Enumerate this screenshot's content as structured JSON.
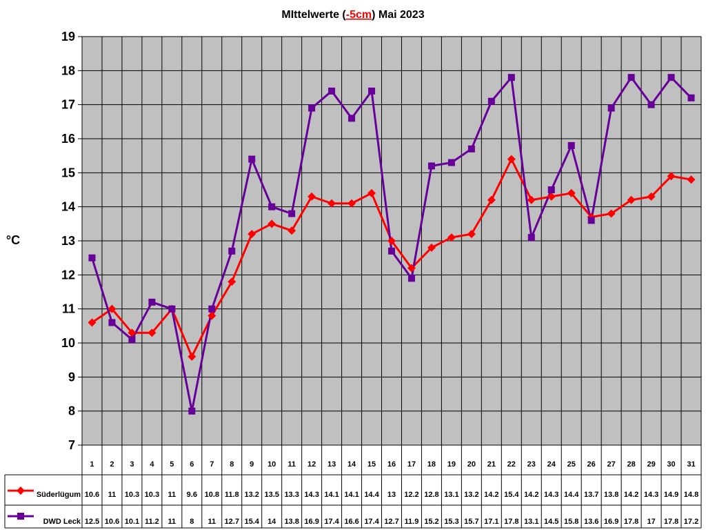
{
  "chart_data": {
    "type": "line",
    "title_prefix": "MIttelwerte (",
    "title_highlight": "-5cm",
    "title_suffix": ") Mai 2023",
    "ylabel": "°C",
    "ylim": [
      7,
      19
    ],
    "yticks": [
      7,
      8,
      9,
      10,
      11,
      12,
      13,
      14,
      15,
      16,
      17,
      18,
      19
    ],
    "grid": true,
    "legend_position": "bottom-left table",
    "categories": [
      "1",
      "2",
      "3",
      "4",
      "5",
      "6",
      "7",
      "8",
      "9",
      "10",
      "11",
      "12",
      "13",
      "14",
      "15",
      "16",
      "17",
      "18",
      "19",
      "20",
      "21",
      "22",
      "23",
      "24",
      "25",
      "26",
      "27",
      "28",
      "29",
      "30",
      "31"
    ],
    "series": [
      {
        "name": "Süderlügum",
        "color": "#ff0000",
        "marker": "diamond",
        "values": [
          10.6,
          11,
          10.3,
          10.3,
          11,
          9.6,
          10.8,
          11.8,
          13.2,
          13.5,
          13.3,
          14.3,
          14.1,
          14.1,
          14.4,
          13,
          12.2,
          12.8,
          13.1,
          13.2,
          14.2,
          15.4,
          14.2,
          14.3,
          14.4,
          13.7,
          13.8,
          14.2,
          14.3,
          14.9,
          14.8
        ],
        "labels": [
          "10.6",
          "11",
          "10.3",
          "10.3",
          "11",
          "9.6",
          "10.8",
          "11.8",
          "13.2",
          "13.5",
          "13.3",
          "14.3",
          "14.1",
          "14.1",
          "14.4",
          "13",
          "12.2",
          "12.8",
          "13.1",
          "13.2",
          "14.2",
          "15.4",
          "14.2",
          "14.3",
          "14.4",
          "13.7",
          "13.8",
          "14.2",
          "14.3",
          "14.9",
          "14.8"
        ]
      },
      {
        "name": "DWD Leck",
        "color": "#660099",
        "marker": "square",
        "values": [
          12.5,
          10.6,
          10.1,
          11.2,
          11,
          8,
          11,
          12.7,
          15.4,
          14,
          13.8,
          16.9,
          17.4,
          16.6,
          17.4,
          12.7,
          11.9,
          15.2,
          15.3,
          15.7,
          17.1,
          17.8,
          13.1,
          14.5,
          15.8,
          13.6,
          16.9,
          17.8,
          17,
          17.8,
          17.2
        ],
        "labels": [
          "12.5",
          "10.6",
          "10.1",
          "11.2",
          "11",
          "8",
          "11",
          "12.7",
          "15.4",
          "14",
          "13.8",
          "16.9",
          "17.4",
          "16.6",
          "17.4",
          "12.7",
          "11.9",
          "15.2",
          "15.3",
          "15.7",
          "17.1",
          "17.8",
          "13.1",
          "14.5",
          "15.8",
          "13.6",
          "16.9",
          "17.8",
          "17",
          "17.8",
          "17.2"
        ]
      }
    ]
  },
  "colors": {
    "plot_background": "#c0c0c0",
    "grid": "#000000",
    "axis": "#000000"
  }
}
